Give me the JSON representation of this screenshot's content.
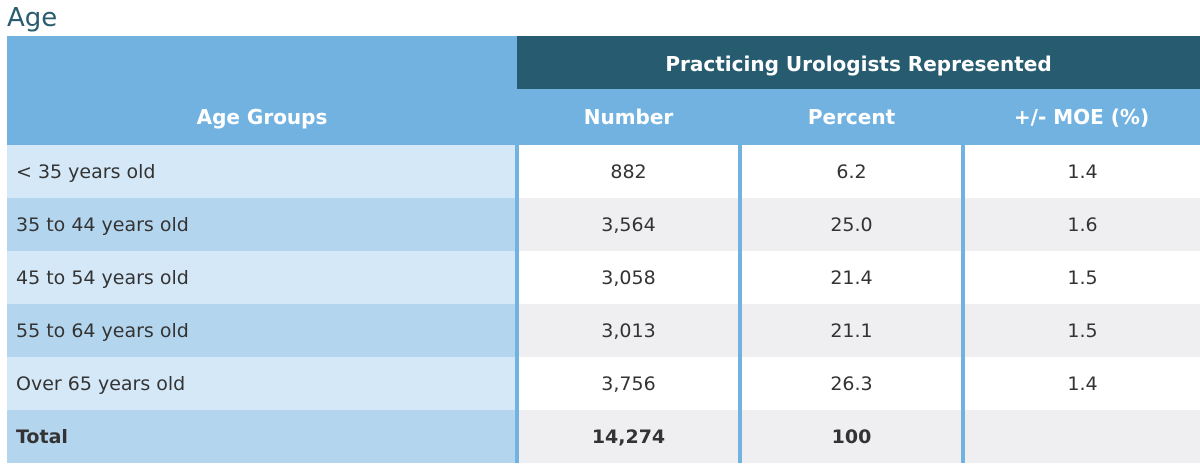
{
  "title": "Age",
  "table": {
    "group_header": "Practicing Urologists Represented",
    "columns": [
      "Age Groups",
      "Number",
      "Percent",
      "+/- MOE (%)"
    ],
    "rows": [
      {
        "label": "< 35 years old",
        "number": "882",
        "percent": "6.2",
        "moe": "1.4"
      },
      {
        "label": "35 to 44 years old",
        "number": "3,564",
        "percent": "25.0",
        "moe": "1.6"
      },
      {
        "label": "45 to 54 years old",
        "number": "3,058",
        "percent": "21.4",
        "moe": "1.5"
      },
      {
        "label": "55 to 64 years old",
        "number": "3,013",
        "percent": "21.1",
        "moe": "1.5"
      },
      {
        "label": "Over 65 years old",
        "number": "3,756",
        "percent": "26.3",
        "moe": "1.4"
      }
    ],
    "total": {
      "label": "Total",
      "number": "14,274",
      "percent": "100",
      "moe": ""
    }
  },
  "colors": {
    "title": "#2a5d70",
    "group_header_bg": "#265b70",
    "column_header_bg": "#72b2e1",
    "label_light": "#d5e8f7",
    "label_dark": "#b4d5ee",
    "value_alt": "#efeff2"
  }
}
